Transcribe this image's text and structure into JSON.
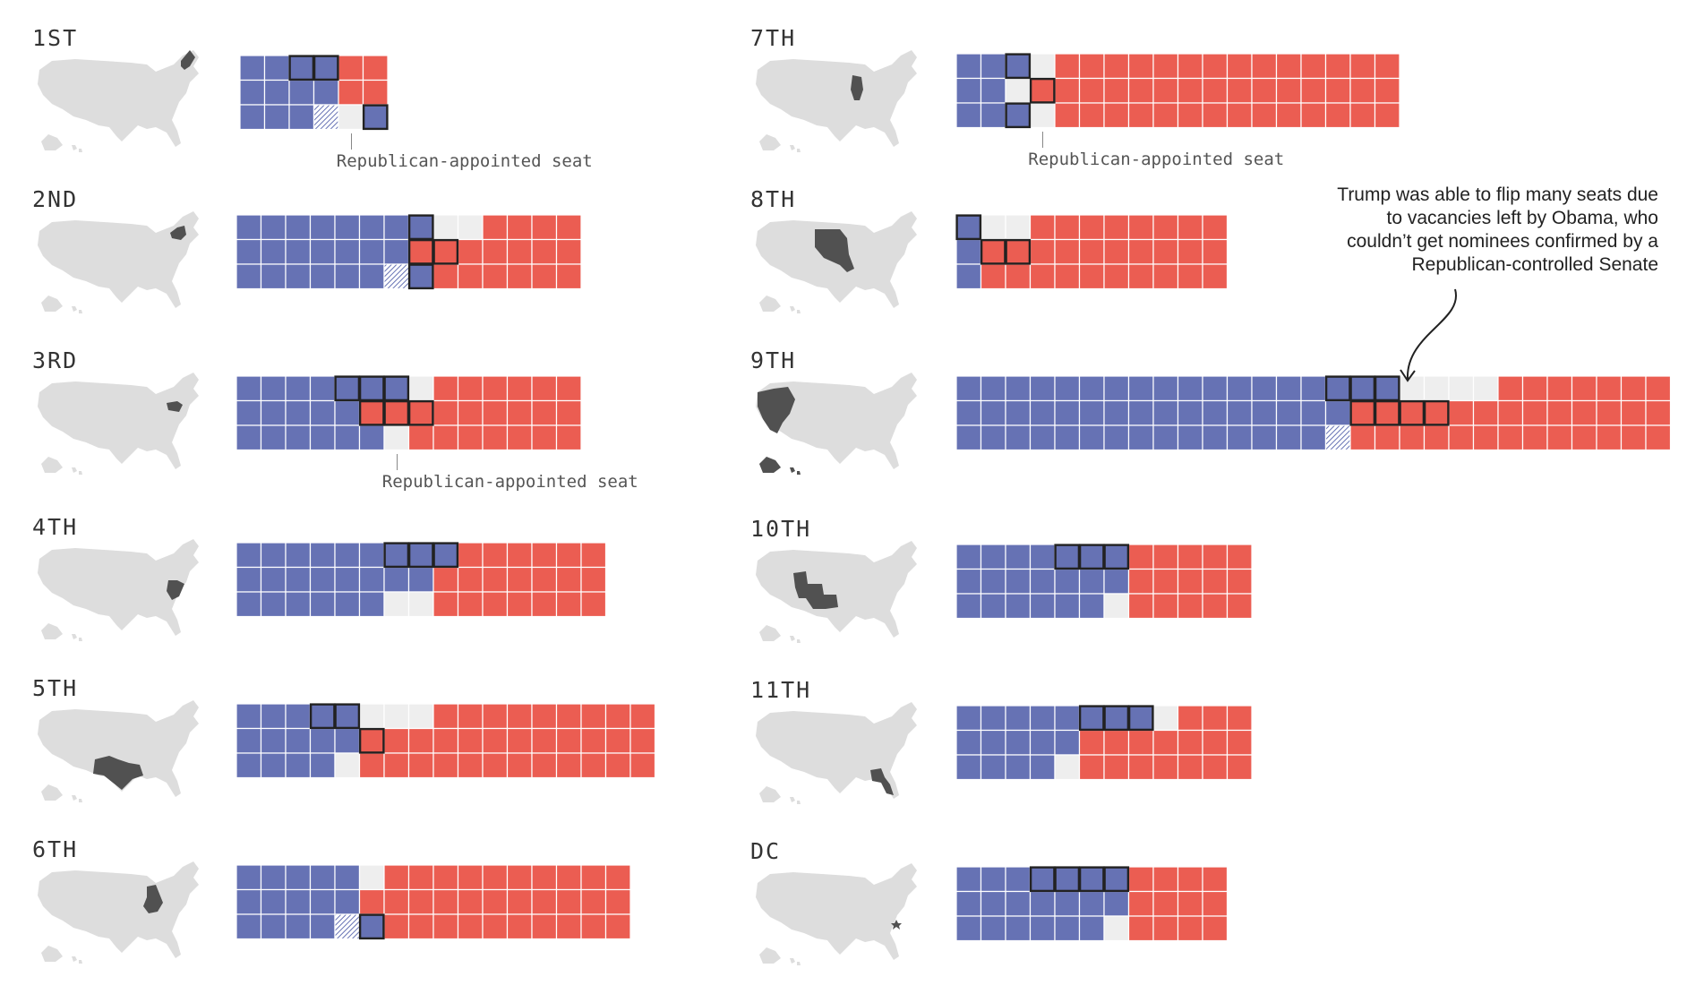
{
  "colors": {
    "democrat": "#6672b4",
    "republican": "#eb5d52",
    "vacant": "#eeeeee",
    "map_land": "#dddddd",
    "map_highlight": "#515151",
    "outline": "#222222"
  },
  "icons": {
    "map": "us-map-icon",
    "arrow": "curved-arrow-icon"
  },
  "annotation": {
    "lines": [
      "Trump was able to flip many seats due",
      "to vacancies left by Obama, who",
      "couldn’t get nominees confirmed by a",
      "Republican-controlled Senate"
    ]
  },
  "chart_data": {
    "type": "waffle",
    "rows_per_column": 3,
    "cell_legend": {
      "D": "Democrat-appointed seat",
      "R": "Republican-appointed seat",
      "V": "Vacant seat",
      "H": "Hatched seat",
      "b": "Outlined Democrat-appointed seat",
      "r": "Outlined Republican-appointed seat"
    },
    "circuits": [
      {
        "label": "1ST",
        "columns": [
          "DDD",
          "DDD",
          "bDD",
          "bDH",
          "RRV",
          "RRb"
        ],
        "callout": {
          "text": "Republican-appointed seat",
          "column": 4
        }
      },
      {
        "label": "2ND",
        "columns": [
          "DDD",
          "DDD",
          "DDD",
          "DDD",
          "DDD",
          "DDD",
          "DDH",
          "brb",
          "VrR",
          "VRR",
          "RRR",
          "RRR",
          "RRR",
          "RRR"
        ]
      },
      {
        "label": "3RD",
        "columns": [
          "DDD",
          "DDD",
          "DDD",
          "DDD",
          "bDD",
          "brD",
          "brV",
          "Vr R",
          "RRR",
          "RRR",
          "RRR",
          "RRR",
          "RRR",
          "RRR"
        ],
        "callout": {
          "text": "Republican-appointed seat",
          "column": 6
        }
      },
      {
        "label": "4TH",
        "columns": [
          "DDD",
          "DDD",
          "DDD",
          "DDD",
          "DDD",
          "DDD",
          "bDV",
          "bDV",
          "bRR",
          "RRR",
          "RRR",
          "RRR",
          "RRR",
          "RRR",
          "RRR"
        ]
      },
      {
        "label": "5TH",
        "columns": [
          "DDD",
          "DDD",
          "DDD",
          "bDD",
          "bDV",
          "VrR",
          "VRR",
          "VRR",
          "RRR",
          "RRR",
          "RRR",
          "RRR",
          "RRR",
          "RRR",
          "RRR",
          "RRR",
          "RRR"
        ]
      },
      {
        "label": "6TH",
        "columns": [
          "DDD",
          "DDD",
          "DDD",
          "DDD",
          "DDH",
          "VRb",
          "RRR",
          "RRR",
          "RRR",
          "RRR",
          "RRR",
          "RRR",
          "RRR",
          "RRR",
          "RRR",
          "RRR"
        ]
      },
      {
        "label": "7TH",
        "columns": [
          "DDD",
          "DDD",
          "bVb",
          "VrV",
          "RRR",
          "RRR",
          "RRR",
          "RRR",
          "RRR",
          "RRR",
          "RRR",
          "RRR",
          "RRR",
          "RRR",
          "RRR",
          "RRR",
          "RRR",
          "RRR"
        ],
        "callout": {
          "text": "Republican-appointed seat",
          "column": 3
        }
      },
      {
        "label": "8TH",
        "columns": [
          "bDD",
          "VrR",
          "VrR",
          "RRR",
          "RRR",
          "RRR",
          "RRR",
          "RRR",
          "RRR",
          "RRR",
          "RRR"
        ]
      },
      {
        "label": "9TH",
        "columns": [
          "DDD",
          "DDD",
          "DDD",
          "DDD",
          "DDD",
          "DDD",
          "DDD",
          "DDD",
          "DDD",
          "DDD",
          "DDD",
          "DDD",
          "DDD",
          "DDD",
          "DDD",
          "bDH",
          "brR",
          "brR",
          "VrR",
          "VrR",
          "VRR",
          "VRR",
          "RRR",
          "RRR",
          "RRR",
          "RRR",
          "RRR",
          "RRR",
          "RRR"
        ]
      },
      {
        "label": "10TH",
        "columns": [
          "DDD",
          "DDD",
          "DDD",
          "DDD",
          "bDD",
          "bDD",
          "bDV",
          "RRR",
          "RRR",
          "RRR",
          "RRR",
          "RRR"
        ]
      },
      {
        "label": "11TH",
        "columns": [
          "DDD",
          "DDD",
          "DDD",
          "DDD",
          "DDV",
          "bRR",
          "bRR",
          "bRR",
          "VRR",
          "RRR",
          "RRR",
          "RRR"
        ]
      },
      {
        "label": "DC",
        "columns": [
          "DDD",
          "DDD",
          "DDD",
          "bDD",
          "bDD",
          "bDD",
          "bDV",
          "RRR",
          "RRR",
          "RRR",
          "RRR"
        ]
      }
    ]
  }
}
